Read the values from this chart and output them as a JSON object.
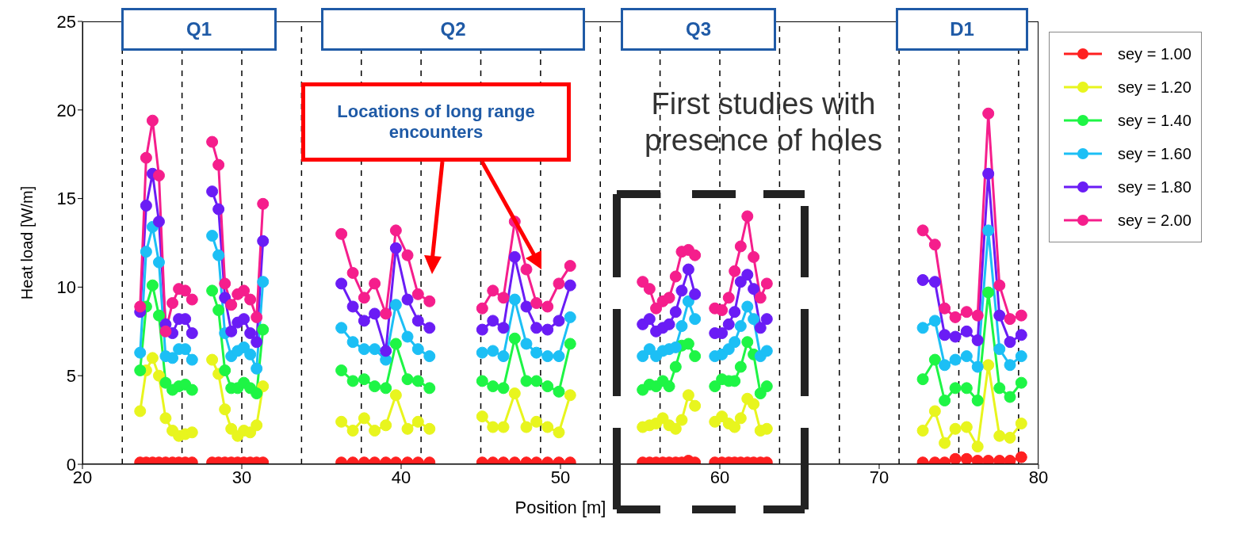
{
  "chart_data": {
    "type": "line",
    "xlabel": "Position [m]",
    "ylabel": "Heat load [W/m]",
    "xlim": [
      20,
      80
    ],
    "xticks": [
      20,
      30,
      40,
      50,
      60,
      70,
      80
    ],
    "ylim": [
      0,
      25
    ],
    "yticks": [
      0,
      5,
      10,
      15,
      20,
      25
    ],
    "grid": false,
    "legend": "right",
    "marker": "circle",
    "line_style": "solid",
    "x": [
      23.62,
      24.0,
      24.4,
      24.8,
      25.22,
      25.65,
      26.05,
      26.45,
      26.88,
      27.5,
      28.14,
      28.54,
      28.94,
      29.34,
      29.74,
      30.13,
      30.53,
      30.93,
      31.33,
      34,
      36.25,
      36.97,
      37.68,
      38.34,
      39.04,
      39.67,
      40.4,
      41.06,
      41.78,
      43.5,
      45.09,
      45.76,
      46.42,
      47.13,
      47.86,
      48.49,
      49.19,
      49.9,
      50.61,
      53,
      55.16,
      55.59,
      56.0,
      56.42,
      56.82,
      57.23,
      57.61,
      58.03,
      58.44,
      59.1,
      59.69,
      60.13,
      60.56,
      60.93,
      61.31,
      61.73,
      62.12,
      62.55,
      62.95,
      68,
      72.74,
      73.5,
      74.11,
      74.78,
      75.49,
      76.18,
      76.85,
      77.55,
      78.21,
      78.92
    ],
    "series": [
      {
        "name": "sey = 1.00",
        "color": "#ff2020",
        "values": [
          0.1,
          0.1,
          0.1,
          0.1,
          0.1,
          0.1,
          0.1,
          0.1,
          0.1,
          null,
          0.1,
          0.1,
          0.1,
          0.1,
          0.1,
          0.1,
          0.1,
          0.1,
          0.1,
          null,
          0.1,
          0.1,
          0.1,
          0.1,
          0.1,
          0.1,
          0.1,
          0.1,
          0.1,
          null,
          0.1,
          0.1,
          0.1,
          0.1,
          0.1,
          0.1,
          0.1,
          0.1,
          0.1,
          null,
          0.1,
          0.1,
          0.1,
          0.1,
          0.1,
          0.1,
          0.1,
          0.2,
          0.1,
          null,
          0.1,
          0.1,
          0.1,
          0.1,
          0.1,
          0.1,
          0.1,
          0.1,
          0.1,
          null,
          0.1,
          0.1,
          0.1,
          0.3,
          0.3,
          0.2,
          0.2,
          0.2,
          0.2,
          0.4
        ]
      },
      {
        "name": "sey = 1.20",
        "color": "#e8f51e",
        "values": [
          3.0,
          5.3,
          6.0,
          5.0,
          2.6,
          1.9,
          1.6,
          1.7,
          1.8,
          null,
          5.9,
          5.1,
          3.1,
          2.0,
          1.6,
          1.9,
          1.8,
          2.2,
          4.4,
          null,
          2.4,
          1.9,
          2.6,
          1.9,
          2.2,
          3.9,
          2.0,
          2.4,
          2.0,
          null,
          2.7,
          2.1,
          2.1,
          4.0,
          2.1,
          2.4,
          2.1,
          1.8,
          3.9,
          null,
          2.1,
          2.2,
          2.3,
          2.6,
          2.2,
          2.0,
          2.5,
          3.9,
          3.3,
          null,
          2.4,
          2.7,
          2.3,
          2.1,
          2.6,
          3.7,
          3.4,
          1.9,
          2.0,
          null,
          1.9,
          3.0,
          1.2,
          2.0,
          2.1,
          1.0,
          5.6,
          1.6,
          1.5,
          2.3
        ]
      },
      {
        "name": "sey = 1.40",
        "color": "#1ef545",
        "values": [
          5.3,
          8.9,
          10.1,
          8.4,
          4.6,
          4.2,
          4.4,
          4.5,
          4.2,
          null,
          9.8,
          8.7,
          5.3,
          4.3,
          4.3,
          4.6,
          4.3,
          4.0,
          7.6,
          null,
          5.3,
          4.7,
          4.8,
          4.4,
          4.3,
          6.8,
          4.8,
          4.7,
          4.3,
          null,
          4.7,
          4.4,
          4.3,
          7.1,
          4.7,
          4.7,
          4.4,
          4.1,
          6.8,
          null,
          4.2,
          4.5,
          4.4,
          4.7,
          4.4,
          5.5,
          6.7,
          6.8,
          6.1,
          null,
          4.4,
          4.8,
          4.7,
          4.7,
          5.5,
          6.9,
          6.2,
          4.0,
          4.4,
          null,
          4.8,
          5.9,
          3.6,
          4.3,
          4.3,
          3.6,
          9.7,
          4.3,
          3.8,
          4.6
        ]
      },
      {
        "name": "sey = 1.60",
        "color": "#1cbff5",
        "values": [
          6.3,
          12.0,
          13.4,
          11.4,
          6.1,
          6.0,
          6.5,
          6.5,
          5.9,
          null,
          12.9,
          11.8,
          7.4,
          6.1,
          6.4,
          6.6,
          6.2,
          5.4,
          10.3,
          null,
          7.7,
          6.9,
          6.5,
          6.5,
          5.9,
          9.0,
          7.2,
          6.5,
          6.1,
          null,
          6.3,
          6.4,
          6.1,
          9.3,
          6.8,
          6.3,
          6.1,
          6.1,
          8.3,
          null,
          6.1,
          6.5,
          6.1,
          6.4,
          6.5,
          6.6,
          7.8,
          9.2,
          8.2,
          null,
          6.1,
          6.2,
          6.5,
          6.9,
          7.8,
          8.9,
          8.2,
          6.1,
          6.4,
          null,
          7.7,
          8.1,
          5.6,
          5.9,
          6.1,
          5.5,
          13.2,
          6.5,
          5.6,
          6.1
        ]
      },
      {
        "name": "sey = 1.80",
        "color": "#6a1cf5",
        "values": [
          8.6,
          14.6,
          16.4,
          13.7,
          7.9,
          7.4,
          8.2,
          8.2,
          7.4,
          null,
          15.4,
          14.4,
          9.4,
          7.5,
          8.0,
          8.2,
          7.4,
          6.9,
          12.6,
          null,
          10.2,
          8.9,
          8.1,
          8.5,
          6.4,
          12.2,
          9.3,
          8.1,
          7.7,
          null,
          7.6,
          8.1,
          7.7,
          11.7,
          8.9,
          7.7,
          7.6,
          8.1,
          10.1,
          null,
          7.9,
          8.2,
          7.5,
          7.7,
          7.9,
          8.6,
          9.8,
          11.0,
          9.6,
          null,
          7.4,
          7.4,
          7.9,
          8.6,
          10.3,
          10.7,
          9.9,
          7.7,
          8.2,
          null,
          10.4,
          10.3,
          7.3,
          7.2,
          7.5,
          7.0,
          16.4,
          8.4,
          6.9,
          7.3
        ]
      },
      {
        "name": "sey = 2.00",
        "color": "#f51e8c",
        "values": [
          8.9,
          17.3,
          19.4,
          16.3,
          7.5,
          9.1,
          9.9,
          9.8,
          9.3,
          null,
          18.2,
          16.9,
          10.2,
          9.0,
          9.6,
          9.8,
          9.3,
          8.3,
          14.7,
          null,
          13.0,
          10.8,
          9.4,
          10.2,
          8.5,
          13.2,
          11.8,
          9.6,
          9.2,
          null,
          8.8,
          9.8,
          9.4,
          13.7,
          11.0,
          9.1,
          8.9,
          10.2,
          11.2,
          null,
          10.3,
          9.9,
          8.8,
          9.2,
          9.4,
          10.6,
          12.0,
          12.1,
          11.8,
          null,
          8.8,
          8.7,
          9.4,
          10.9,
          12.3,
          14.0,
          11.7,
          9.4,
          10.2,
          null,
          13.2,
          12.4,
          8.8,
          8.3,
          8.6,
          8.4,
          19.8,
          10.1,
          8.2,
          8.4
        ]
      }
    ],
    "ref_lines": [
      {
        "axis": "x",
        "value": 22.5,
        "color": "#000000",
        "line_style": "dashed"
      },
      {
        "axis": "x",
        "value": 26.25,
        "color": "#000000",
        "line_style": "dashed"
      },
      {
        "axis": "x",
        "value": 30,
        "color": "#000000",
        "line_style": "dashed"
      },
      {
        "axis": "x",
        "value": 33.75,
        "color": "#000000",
        "line_style": "dashed"
      },
      {
        "axis": "x",
        "value": 37.5,
        "color": "#000000",
        "line_style": "dashed"
      },
      {
        "axis": "x",
        "value": 41.25,
        "color": "#000000",
        "line_style": "dashed"
      },
      {
        "axis": "x",
        "value": 45,
        "color": "#000000",
        "line_style": "dashed"
      },
      {
        "axis": "x",
        "value": 48.75,
        "color": "#000000",
        "line_style": "dashed"
      },
      {
        "axis": "x",
        "value": 52.5,
        "color": "#000000",
        "line_style": "dashed"
      },
      {
        "axis": "x",
        "value": 56.25,
        "color": "#000000",
        "line_style": "dashed"
      },
      {
        "axis": "x",
        "value": 60,
        "color": "#000000",
        "line_style": "dashed"
      },
      {
        "axis": "x",
        "value": 63.75,
        "color": "#000000",
        "line_style": "dashed"
      },
      {
        "axis": "x",
        "value": 67.5,
        "color": "#000000",
        "line_style": "dashed"
      },
      {
        "axis": "x",
        "value": 71.25,
        "color": "#000000",
        "line_style": "dashed"
      },
      {
        "axis": "x",
        "value": 75,
        "color": "#000000",
        "line_style": "dashed"
      },
      {
        "axis": "x",
        "value": 78.75,
        "color": "#000000",
        "line_style": "dashed"
      }
    ],
    "annotations": [
      "Q1",
      "Q2",
      "Q3",
      "D1",
      "Locations of long range encounters",
      "First studies with presence of holes"
    ]
  }
}
